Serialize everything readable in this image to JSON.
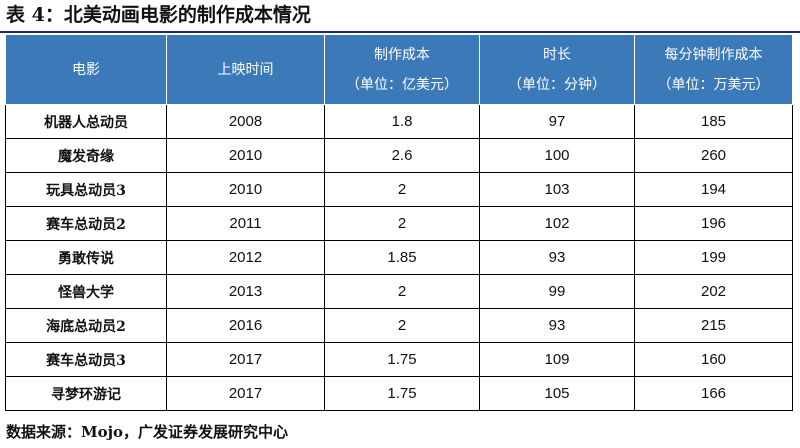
{
  "title": "表 4：北美动画电影的制作成本情况",
  "headers": [
    {
      "line1": "电影",
      "line2": ""
    },
    {
      "line1": "上映时间",
      "line2": ""
    },
    {
      "line1": "制作成本",
      "line2": "（单位：亿美元）"
    },
    {
      "line1": "时长",
      "line2": "（单位：分钟）"
    },
    {
      "line1": "每分钟制作成本",
      "line2": "（单位：万美元）"
    }
  ],
  "rows": [
    [
      "机器人总动员",
      "2008",
      "1.8",
      "97",
      "185"
    ],
    [
      "魔发奇缘",
      "2010",
      "2.6",
      "100",
      "260"
    ],
    [
      "玩具总动员3",
      "2010",
      "2",
      "103",
      "194"
    ],
    [
      "赛车总动员2",
      "2011",
      "2",
      "102",
      "196"
    ],
    [
      "勇敢传说",
      "2012",
      "1.85",
      "93",
      "199"
    ],
    [
      "怪兽大学",
      "2013",
      "2",
      "99",
      "202"
    ],
    [
      "海底总动员2",
      "2016",
      "2",
      "93",
      "215"
    ],
    [
      "赛车总动员3",
      "2017",
      "1.75",
      "109",
      "160"
    ],
    [
      "寻梦环游记",
      "2017",
      "1.75",
      "105",
      "166"
    ]
  ],
  "source": "数据来源：Mojo，广发证券发展研究中心",
  "colors": {
    "header_bg": "#3b79b8",
    "header_text": "#ffffff",
    "rule": "#1b2c6b"
  }
}
